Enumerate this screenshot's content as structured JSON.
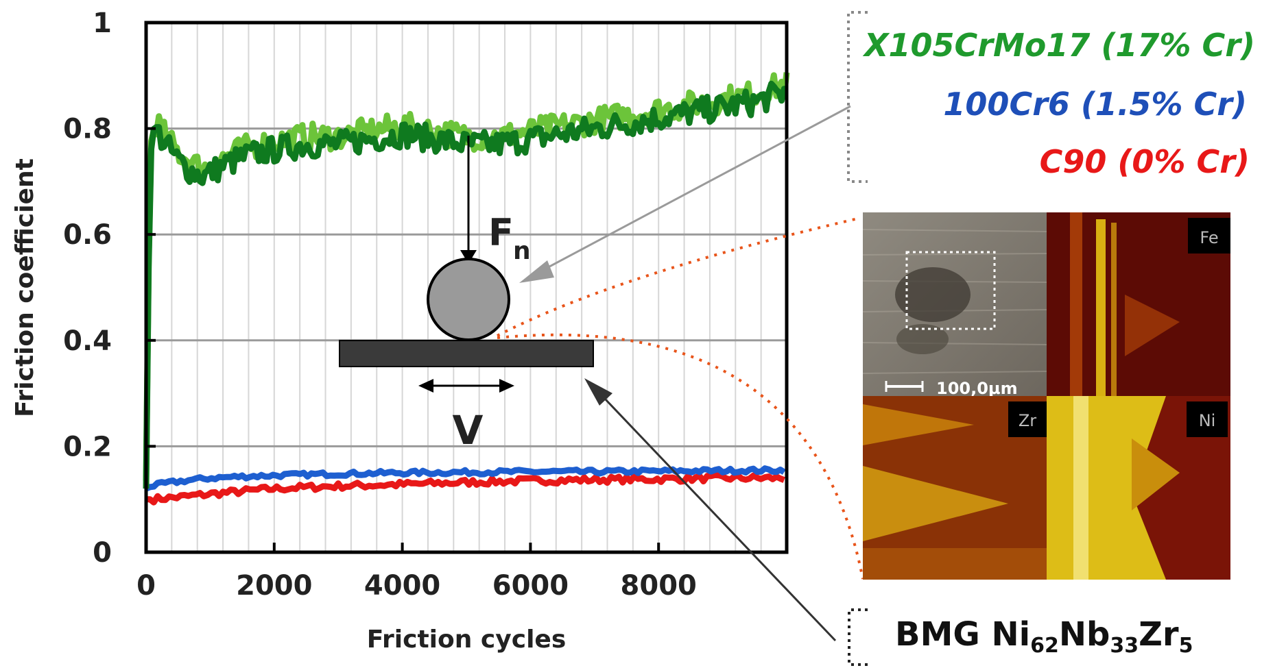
{
  "chart_data": {
    "type": "line",
    "xlabel": "Friction cycles",
    "ylabel": "Friction coefficient",
    "xlim": [
      0,
      10000
    ],
    "ylim": [
      0,
      1
    ],
    "xticks": [
      "0",
      "2000",
      "4000",
      "6000",
      "8000"
    ],
    "yticks": [
      "0",
      "0.2",
      "0.4",
      "0.6",
      "0.8",
      "1"
    ],
    "grid": true,
    "legend_position": "top-right",
    "series": [
      {
        "name": "X105CrMo17 (17% Cr)",
        "color": "#1f9a2d",
        "x": [
          0,
          60,
          150,
          300,
          500,
          700,
          900,
          1200,
          1600,
          2000,
          2500,
          3000,
          3500,
          4000,
          4500,
          5000,
          5500,
          6000,
          6500,
          7000,
          7500,
          8000,
          8500,
          9000,
          9500,
          10000
        ],
        "y": [
          0.12,
          0.75,
          0.8,
          0.77,
          0.74,
          0.72,
          0.71,
          0.73,
          0.75,
          0.76,
          0.77,
          0.77,
          0.78,
          0.79,
          0.78,
          0.77,
          0.77,
          0.78,
          0.79,
          0.8,
          0.81,
          0.82,
          0.83,
          0.84,
          0.85,
          0.87
        ]
      },
      {
        "name": "100Cr6 (1.5% Cr)",
        "color": "#1e5fd0",
        "x": [
          0,
          100,
          300,
          600,
          1000,
          1500,
          2000,
          3000,
          4000,
          5000,
          6000,
          7000,
          8000,
          9000,
          10000
        ],
        "y": [
          0.12,
          0.125,
          0.13,
          0.135,
          0.14,
          0.143,
          0.145,
          0.148,
          0.15,
          0.151,
          0.152,
          0.152,
          0.153,
          0.154,
          0.155
        ]
      },
      {
        "name": "C90 (0% Cr)",
        "color": "#e81818",
        "x": [
          0,
          100,
          300,
          600,
          1000,
          1500,
          2000,
          3000,
          4000,
          5000,
          6000,
          7000,
          8000,
          9000,
          10000
        ],
        "y": [
          0.1,
          0.1,
          0.102,
          0.105,
          0.11,
          0.115,
          0.12,
          0.125,
          0.128,
          0.132,
          0.135,
          0.137,
          0.138,
          0.14,
          0.14
        ]
      }
    ]
  },
  "legend": {
    "x105": "X105CrMo17 (17% Cr)",
    "cr6": "100Cr6 (1.5% Cr)",
    "c90": "C90 (0% Cr)"
  },
  "inset": {
    "force_label": "F",
    "force_sub": "n",
    "velocity_label": "V"
  },
  "micrograph": {
    "scale_bar": "100,0µm",
    "fe": "Fe",
    "zr": "Zr",
    "ni": "Ni"
  },
  "bmg": {
    "prefix": "BMG Ni",
    "sub1": "62",
    "mid": "Nb",
    "sub2": "33",
    "end": "Zr",
    "sub3": "5"
  },
  "colors": {
    "green_dark": "#0f7a1f",
    "green_light": "#6cc43a",
    "blue": "#1e5fd0",
    "red": "#e81818",
    "dotted_orange": "#e8541a"
  }
}
